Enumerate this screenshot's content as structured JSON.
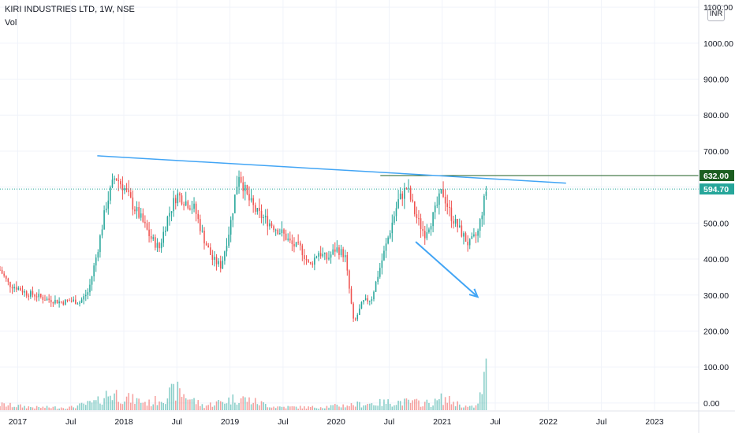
{
  "header": {
    "title": "KIRI INDUSTRIES LTD, 1W, NSE",
    "volume_label": "Vol"
  },
  "currency_label": "INR",
  "chart_data": {
    "type": "candlestick",
    "title": "KIRI INDUSTRIES LTD, 1W, NSE",
    "y_axis": {
      "ticks": [
        0,
        100,
        200,
        300,
        400,
        500,
        600,
        700,
        800,
        900,
        1000,
        1100
      ],
      "tick_labels": [
        "0.00",
        "100.00",
        "200.00",
        "300.00",
        "400.00",
        "500.00",
        "600.00",
        "700.00",
        "800.00",
        "900.00",
        "1000.00",
        "1100.00"
      ],
      "range": [
        -20,
        1120
      ]
    },
    "x_axis": {
      "tick_labels": [
        "2017",
        "Jul",
        "2018",
        "Jul",
        "2019",
        "Jul",
        "2020",
        "Jul",
        "2021",
        "Jul",
        "2022",
        "Jul",
        "2023"
      ],
      "tick_dates": [
        "2017-01",
        "2017-07",
        "2018-01",
        "2018-07",
        "2019-01",
        "2019-07",
        "2020-01",
        "2020-07",
        "2021-01",
        "2021-07",
        "2022-01",
        "2022-07",
        "2023-01"
      ],
      "range": [
        "2016-11",
        "2023-06"
      ]
    },
    "price_levels": [
      {
        "label": "632.00",
        "value": 632,
        "color": "#1b5e20",
        "style": "solid"
      },
      {
        "label": "594.70",
        "value": 594.7,
        "color": "#26a69a",
        "style": "dotted"
      }
    ],
    "price_path": [
      [
        "2016-11",
        370
      ],
      [
        "2016-12",
        330
      ],
      [
        "2017-01",
        320
      ],
      [
        "2017-02",
        305
      ],
      [
        "2017-03",
        300
      ],
      [
        "2017-04",
        290
      ],
      [
        "2017-05",
        285
      ],
      [
        "2017-06",
        280
      ],
      [
        "2017-07",
        285
      ],
      [
        "2017-08",
        280
      ],
      [
        "2017-09",
        310
      ],
      [
        "2017-10",
        420
      ],
      [
        "2017-11",
        550
      ],
      [
        "2017-12",
        630
      ],
      [
        "2018-01",
        600
      ],
      [
        "2018-02",
        550
      ],
      [
        "2018-03",
        510
      ],
      [
        "2018-04",
        460
      ],
      [
        "2018-05",
        430
      ],
      [
        "2018-06",
        520
      ],
      [
        "2018-07",
        580
      ],
      [
        "2018-08",
        560
      ],
      [
        "2018-09",
        540
      ],
      [
        "2018-10",
        460
      ],
      [
        "2018-11",
        400
      ],
      [
        "2018-12",
        380
      ],
      [
        "2019-01",
        490
      ],
      [
        "2019-02",
        640
      ],
      [
        "2019-03",
        570
      ],
      [
        "2019-04",
        530
      ],
      [
        "2019-05",
        510
      ],
      [
        "2019-06",
        490
      ],
      [
        "2019-07",
        470
      ],
      [
        "2019-08",
        440
      ],
      [
        "2019-09",
        430
      ],
      [
        "2019-10",
        380
      ],
      [
        "2019-11",
        420
      ],
      [
        "2019-12",
        400
      ],
      [
        "2020-01",
        430
      ],
      [
        "2020-02",
        410
      ],
      [
        "2020-03",
        220
      ],
      [
        "2020-04",
        280
      ],
      [
        "2020-05",
        290
      ],
      [
        "2020-06",
        380
      ],
      [
        "2020-07",
        470
      ],
      [
        "2020-08",
        560
      ],
      [
        "2020-09",
        600
      ],
      [
        "2020-10",
        520
      ],
      [
        "2020-11",
        470
      ],
      [
        "2020-12",
        520
      ],
      [
        "2021-01",
        590
      ],
      [
        "2021-02",
        520
      ],
      [
        "2021-03",
        480
      ],
      [
        "2021-04",
        440
      ],
      [
        "2021-05",
        470
      ],
      [
        "2021-06",
        595
      ]
    ],
    "volume_path": [
      [
        "2016-11",
        40
      ],
      [
        "2017-03",
        20
      ],
      [
        "2017-07",
        20
      ],
      [
        "2017-10",
        60
      ],
      [
        "2017-11",
        110
      ],
      [
        "2017-12",
        120
      ],
      [
        "2018-01",
        90
      ],
      [
        "2018-04",
        50
      ],
      [
        "2018-07",
        140
      ],
      [
        "2018-10",
        30
      ],
      [
        "2019-02",
        90
      ],
      [
        "2019-06",
        25
      ],
      [
        "2019-10",
        20
      ],
      [
        "2020-01",
        30
      ],
      [
        "2020-03",
        40
      ],
      [
        "2020-08",
        60
      ],
      [
        "2020-12",
        50
      ],
      [
        "2021-01",
        85
      ],
      [
        "2021-04",
        20
      ],
      [
        "2021-05",
        30
      ],
      [
        "2021-06",
        280
      ]
    ],
    "annotations": [
      {
        "type": "trendline",
        "color": "#42a5f5",
        "from": [
          "2017-10",
          687
        ],
        "to": [
          "2022-03",
          611
        ]
      },
      {
        "type": "arrow",
        "color": "#42a5f5",
        "from": [
          "2020-10",
          448
        ],
        "to": [
          "2021-05",
          295
        ]
      }
    ],
    "colors": {
      "up": "#26a69a",
      "down": "#ef5350",
      "grid": "#f0f3fa"
    }
  }
}
